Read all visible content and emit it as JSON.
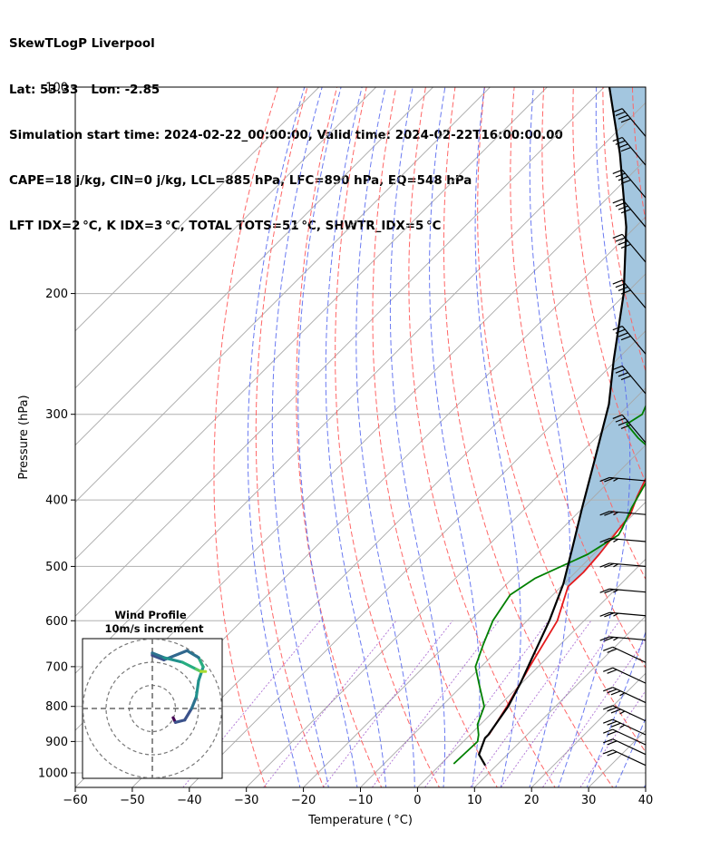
{
  "header": {
    "line1": "SkewTLogP Liverpool",
    "line2": "Lat: 53.33   Lon: -2.85",
    "line3": "Simulation start time: 2024-02-22_00:00:00, Valid time: 2024-02-22T16:00:00.00",
    "line4": "CAPE=18 j/kg, CIN=0 j/kg, LCL=885 hPa, LFC=890 hPa, EQ=548 hPa",
    "line5": "LFT IDX=2 °C, K IDX=3 °C, TOTAL TOTS=51 °C, SHWTR_IDX=5 °C"
  },
  "chart_data": {
    "type": "line",
    "xlabel": "Temperature ( °C)",
    "ylabel": "Pressure (hPa)",
    "xlim": [
      -60,
      40
    ],
    "ylim": [
      1050,
      100
    ],
    "y_scale": "log",
    "x_ticks": [
      -60,
      -50,
      -40,
      -30,
      -20,
      -10,
      0,
      10,
      20,
      30,
      40
    ],
    "x_tick_labels": [
      "−60",
      "−50",
      "−40",
      "−30",
      "−20",
      "−10",
      "0",
      "10",
      "20",
      "30",
      "40"
    ],
    "y_ticks": [
      1000,
      900,
      800,
      700,
      600,
      500,
      400,
      300,
      200,
      100
    ],
    "y_tick_labels": [
      "1000",
      "900",
      "800",
      "700",
      "600",
      "500",
      "400",
      "300",
      "200",
      "100"
    ],
    "grid": true,
    "skew": true,
    "cape_fill_color": "#a3c6df",
    "series": [
      {
        "role": "temperature",
        "color": "#e41a1c",
        "points": [
          [
            3.3,
            880
          ],
          [
            1.5,
            800
          ],
          [
            -1.5,
            700
          ],
          [
            -4.7,
            600
          ],
          [
            -8.8,
            535
          ],
          [
            -8.6,
            510
          ],
          [
            -9.0,
            480
          ],
          [
            -10.5,
            420
          ],
          [
            -12.5,
            395
          ],
          [
            -15,
            360
          ],
          [
            -15.5,
            345
          ],
          [
            -17,
            330
          ],
          [
            -17.5,
            315
          ],
          [
            -18.5,
            300
          ],
          [
            -20.5,
            275
          ],
          [
            -22.5,
            255
          ],
          [
            -25,
            240
          ],
          [
            -27.5,
            230
          ],
          [
            -31,
            210
          ],
          [
            -33,
            200
          ],
          [
            -36,
            190
          ],
          [
            -39,
            180
          ],
          [
            -44,
            165
          ],
          [
            -48,
            150
          ],
          [
            -51.5,
            140
          ],
          [
            -55,
            130
          ],
          [
            -59,
            120
          ],
          [
            -63,
            110
          ],
          [
            -66,
            100
          ]
        ]
      },
      {
        "role": "dewpoint",
        "color": "#008000",
        "points": [
          [
            2.2,
            970
          ],
          [
            2.5,
            900
          ],
          [
            1.5,
            880
          ],
          [
            -0.5,
            850
          ],
          [
            -2.5,
            800
          ],
          [
            -7.5,
            740
          ],
          [
            -11,
            700
          ],
          [
            -13.5,
            650
          ],
          [
            -16,
            600
          ],
          [
            -17.5,
            550
          ],
          [
            -16,
            520
          ],
          [
            -11,
            480
          ],
          [
            -9,
            450
          ],
          [
            -9.5,
            440
          ],
          [
            -11.5,
            410
          ],
          [
            -13.5,
            375
          ],
          [
            -15,
            355
          ],
          [
            -17.5,
            340
          ],
          [
            -22.5,
            325
          ],
          [
            -27,
            310
          ],
          [
            -26,
            300
          ],
          [
            -27,
            290
          ],
          [
            -29,
            270
          ],
          [
            -30.5,
            250
          ],
          [
            -33,
            225
          ],
          [
            -35.5,
            205
          ],
          [
            -38.5,
            190
          ],
          [
            -38.5,
            180
          ],
          [
            -41,
            165
          ],
          [
            -45,
            150
          ],
          [
            -50,
            130
          ],
          [
            -53,
            120
          ],
          [
            -58,
            110
          ],
          [
            -61,
            100
          ]
        ]
      },
      {
        "role": "parcel",
        "color": "#000000",
        "points": [
          [
            8,
            975
          ],
          [
            5,
            940
          ],
          [
            3.2,
            890
          ],
          [
            3.2,
            880
          ],
          [
            1.7,
            800
          ],
          [
            -0.2,
            740
          ],
          [
            -2.6,
            680
          ],
          [
            -6.1,
            600
          ],
          [
            -10.1,
            530
          ],
          [
            -14.8,
            470
          ],
          [
            -20.2,
            410
          ],
          [
            -26.3,
            350
          ],
          [
            -33.6,
            290
          ],
          [
            -40.5,
            250
          ],
          [
            -50.4,
            200
          ],
          [
            -61.6,
            160
          ],
          [
            -75.6,
            125
          ],
          [
            -89.1,
            100
          ]
        ]
      }
    ],
    "wind_barbs": [
      {
        "p": 975,
        "speed_kt": 20
      },
      {
        "p": 940,
        "speed_kt": 20
      },
      {
        "p": 910,
        "speed_kt": 20
      },
      {
        "p": 880,
        "speed_kt": 25
      },
      {
        "p": 840,
        "speed_kt": 25
      },
      {
        "p": 790,
        "speed_kt": 25
      },
      {
        "p": 740,
        "speed_kt": 20
      },
      {
        "p": 690,
        "speed_kt": 20
      },
      {
        "p": 640,
        "speed_kt": 15
      },
      {
        "p": 590,
        "speed_kt": 15
      },
      {
        "p": 545,
        "speed_kt": 15
      },
      {
        "p": 500,
        "speed_kt": 15
      },
      {
        "p": 460,
        "speed_kt": 15
      },
      {
        "p": 420,
        "speed_kt": 15
      },
      {
        "p": 375,
        "speed_kt": 15
      },
      {
        "p": 330,
        "speed_kt": 40
      },
      {
        "p": 280,
        "speed_kt": 40
      },
      {
        "p": 245,
        "speed_kt": 40
      },
      {
        "p": 210,
        "speed_kt": 40
      },
      {
        "p": 180,
        "speed_kt": 40
      },
      {
        "p": 160,
        "speed_kt": 40
      },
      {
        "p": 145,
        "speed_kt": 40
      },
      {
        "p": 130,
        "speed_kt": 40
      },
      {
        "p": 118,
        "speed_kt": 40
      }
    ],
    "inset": {
      "title": "Wind Profile",
      "subtitle": "10m/s increment",
      "type": "hodograph",
      "rings_ms": [
        10,
        20,
        30
      ],
      "colormap": "viridis",
      "uv_ms": [
        [
          9,
          -4
        ],
        [
          10,
          -6
        ],
        [
          14,
          -5
        ],
        [
          17,
          0
        ],
        [
          19,
          5
        ],
        [
          20,
          12
        ],
        [
          22,
          18
        ],
        [
          20,
          22
        ],
        [
          15,
          25
        ],
        [
          5,
          21
        ],
        [
          0,
          23
        ],
        [
          0,
          24
        ],
        [
          5,
          22
        ],
        [
          13,
          20
        ],
        [
          19,
          17
        ],
        [
          21,
          16
        ],
        [
          23,
          16
        ]
      ]
    }
  }
}
